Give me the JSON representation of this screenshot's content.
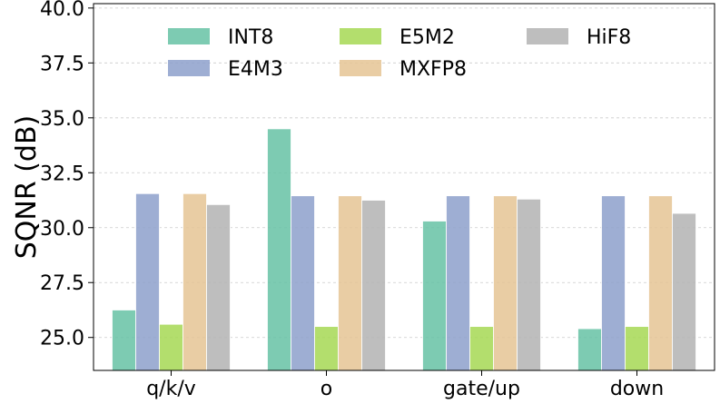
{
  "chart_data": {
    "type": "bar",
    "categories": [
      "q/k/v",
      "o",
      "gate/up",
      "down"
    ],
    "ylabel": "SQNR (dB)",
    "xlabel": "",
    "ylim": [
      23.5,
      40.2
    ],
    "yticks": [
      "25.0",
      "27.5",
      "30.0",
      "32.5",
      "35.0",
      "37.5",
      "40.0"
    ],
    "grid": "horizontal, dashed",
    "legend_placement": "top",
    "series": [
      {
        "name": "INT8",
        "color": "#66c2a5",
        "values": [
          26.25,
          34.5,
          30.3,
          25.4
        ]
      },
      {
        "name": "E4M3",
        "color": "#8da0cb",
        "values": [
          31.55,
          31.45,
          31.45,
          31.45
        ]
      },
      {
        "name": "E5M2",
        "color": "#a6d854",
        "values": [
          25.6,
          25.5,
          25.5,
          25.5
        ]
      },
      {
        "name": "MXFP8",
        "color": "#e5c494",
        "values": [
          31.55,
          31.45,
          31.45,
          31.45
        ]
      },
      {
        "name": "HiF8",
        "color": "#b3b3b3",
        "values": [
          31.05,
          31.25,
          31.3,
          30.65
        ]
      }
    ]
  }
}
